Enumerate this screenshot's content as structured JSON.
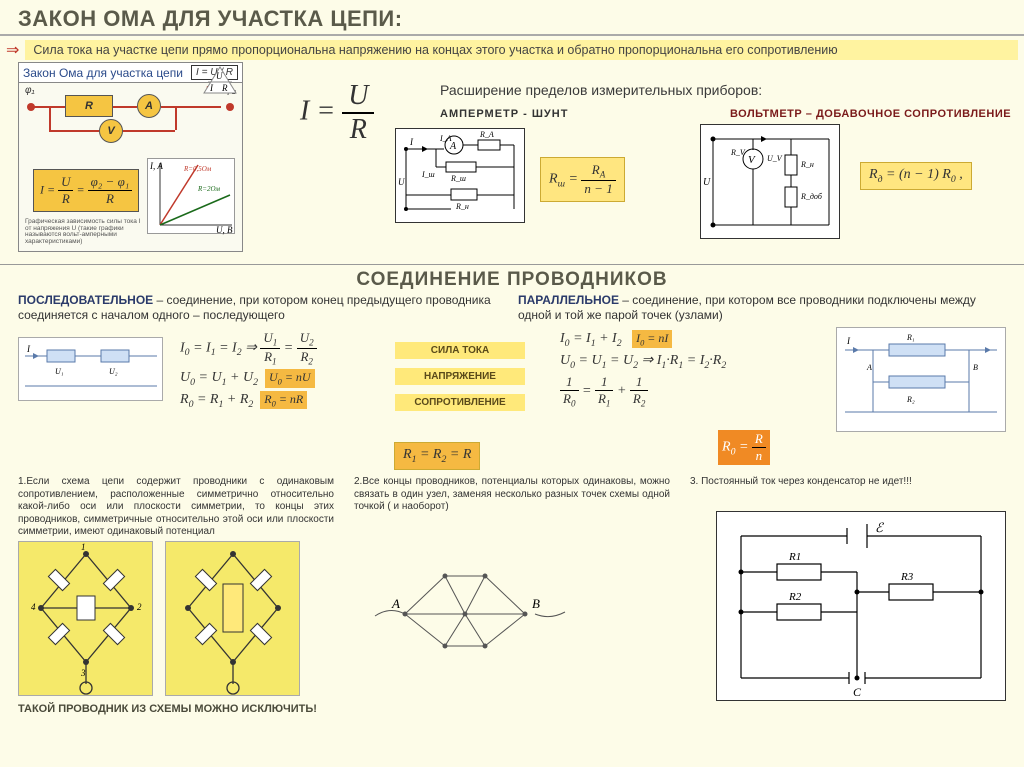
{
  "title": "ЗАКОН ОМА ДЛЯ УЧАСТКА ЦЕПИ:",
  "statement": "Сила тока на участке цепи прямо пропорциональна напряжению на концах этого участка и обратно пропорциональна его сопротивлению",
  "ohm_sub": "Закон Ома для участка цепи",
  "ohm_sub_formula": "I = U / R",
  "ohm_formula_block": "I = U/R = (φ₂ − φ₁)/R",
  "ohm_graph_r1": "R = 0,5 Ом",
  "ohm_graph_r2": "R = 2 Ом",
  "ohm_graph_caption": "Графическая зависимость силы тока I от напряжения U (такие графики называются вольт-амперными характеристиками)",
  "big_I": "I",
  "big_eq": " = ",
  "big_U": "U",
  "big_R": "R",
  "extension_hdr": "Расширение пределов измерительных приборов:",
  "amp_label": "АМПЕРМЕТР - ШУНТ",
  "volt_label": "ВОЛЬТМЕТР – ДОБАВОЧНОЕ СОПРОТИВЛЕНИЕ",
  "shunt_formula_html": "R<sub>ш</sub> = <span class='frac-s'><span class='n'>R<sub>A</sub></span><span class='d'>n − 1</span></span>",
  "add_formula_html": "R<sub>д</sub> = (n − 1) R<sub>0</sub> ,",
  "section2": "СОЕДИНЕНИЕ ПРОВОДНИКОВ",
  "series_def_html": "<b>ПОСЛЕДОВАТЕЛЬНОЕ</b> – соединение, при котором конец предыдущего проводника соединяется с началом одного – последующего",
  "parallel_def_html": "<b>ПАРАЛЛЕЛЬНОЕ</b> – соединение, при котором все проводники подключены между одной и той же парой точек (узлами)",
  "tags": {
    "current": "СИЛА ТОКА",
    "voltage": "НАПРЯЖЕНИЕ",
    "resistance": "СОПРОТИВЛЕНИЕ"
  },
  "series": {
    "i_html": "I<sub>0</sub> = I<sub>1</sub> = I<sub>2</sub> ⇒ <span class='frac-s'><span class='n'>U<sub>1</sub></span><span class='d'>R<sub>1</sub></span></span> = <span class='frac-s'><span class='n'>U<sub>2</sub></span><span class='d'>R<sub>2</sub></span></span>",
    "u_html": "U<sub>0</sub> = U<sub>1</sub> + U<sub>2</sub>",
    "u_n_html": "U<sub>0</sub> = nU",
    "r_html": "R<sub>0</sub> = R<sub>1</sub> + R<sub>2</sub>",
    "r_n_html": "R<sub>0</sub> = nR"
  },
  "parallel": {
    "i_html": "I<sub>0</sub> = I<sub>1</sub> + I<sub>2</sub>",
    "i_n_html": "I<sub>0</sub> = nI",
    "u_html": "U<sub>0</sub> = U<sub>1</sub> = U<sub>2</sub> ⇒ I<sub>1</sub>·R<sub>1</sub> = I<sub>2</sub>·R<sub>2</sub>",
    "r_html": "<span class='frac-s'><span class='n'>1</span><span class='d'>R<sub>0</sub></span></span> = <span class='frac-s'><span class='n'>1</span><span class='d'>R<sub>1</sub></span></span> + <span class='frac-s'><span class='n'>1</span><span class='d'>R<sub>2</sub></span></span>",
    "r_n_html": "R<sub>0</sub> = <span class='frac-s'><span class='n'>R</span><span class='d'>n</span></span>"
  },
  "equal_r_html": "R<sub>1</sub> = R<sub>2</sub> = R",
  "note1": "1.Если схема цепи содержит проводники с одинаковым сопротивлением, расположенные симметрично относительно какой-либо оси или плоскости симметрии, то концы этих проводников, симметричные относительно этой оси или плоскости симметрии, имеют одинаковый потенциал",
  "note2": "2.Все концы проводников, потенциалы которых одинаковы, можно связать в один узел, заменяя несколько разных точек схемы одной точкой ( и наоборот)",
  "note3": "3. Постоянный ток через конденсатор не идет!!!",
  "exclude": "ТАКОЙ ПРОВОДНИК ИЗ СХЕМЫ МОЖНО ИСКЛЮЧИТЬ!",
  "colors": {
    "bg": "#fdfce8",
    "yellow_box": "#f5e96a",
    "highlight": "#ffe680",
    "highlight_dark": "#f5b942",
    "orange": "#f08a24",
    "red": "#c0392b"
  },
  "amp_schem": {
    "labels": [
      "I",
      "I_A",
      "A",
      "R_A",
      "R_ш",
      "I_ш",
      "U",
      "R_н"
    ]
  },
  "volt_schem": {
    "labels": [
      "U",
      "R_V",
      "V",
      "U_V",
      "R_н",
      "R_доб"
    ]
  },
  "cap_schem": {
    "labels": [
      "ℰ",
      "R1",
      "R2",
      "R3",
      "C"
    ]
  },
  "net_labels": {
    "A": "A",
    "B": "B"
  }
}
